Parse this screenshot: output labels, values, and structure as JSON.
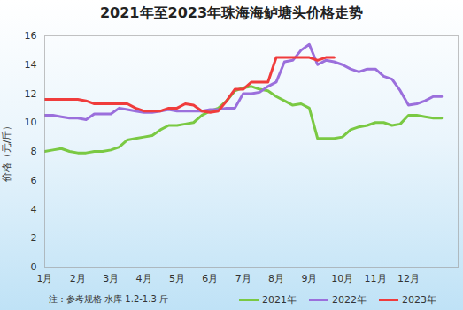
{
  "chart_data": {
    "type": "line",
    "title": "2021年至2023年珠海海鲈塘头价格走势",
    "y_label": "价格（元/斤）",
    "note": "注：参考规格 水库 1.2-1.3 斤",
    "x": [
      1,
      1.25,
      1.5,
      1.75,
      2,
      2.25,
      2.5,
      2.75,
      3,
      3.25,
      3.5,
      3.75,
      4,
      4.25,
      4.5,
      4.75,
      5,
      5.25,
      5.5,
      5.75,
      6,
      6.25,
      6.5,
      6.75,
      7,
      7.25,
      7.5,
      7.75,
      8,
      8.25,
      8.5,
      8.75,
      9,
      9.25,
      9.5,
      9.75,
      10,
      10.25,
      10.5,
      10.75,
      11,
      11.25,
      11.5,
      11.75,
      12,
      12.25,
      12.5,
      12.75,
      13
    ],
    "series": [
      {
        "name": "2021年",
        "color": "#7ac943",
        "values": [
          8.0,
          8.1,
          8.2,
          8.0,
          7.9,
          7.9,
          8.0,
          8.0,
          8.1,
          8.3,
          8.8,
          8.9,
          9.0,
          9.1,
          9.5,
          9.8,
          9.8,
          9.9,
          10.0,
          10.5,
          10.8,
          11.0,
          11.5,
          12.2,
          12.4,
          12.5,
          12.3,
          12.2,
          11.8,
          11.5,
          11.2,
          11.3,
          11.0,
          8.9,
          8.9,
          8.9,
          9.0,
          9.5,
          9.7,
          9.8,
          10.0,
          10.0,
          9.8,
          9.9,
          10.5,
          10.5,
          10.4,
          10.3,
          10.3
        ]
      },
      {
        "name": "2022年",
        "color": "#9b6fdc",
        "values": [
          10.5,
          10.5,
          10.4,
          10.3,
          10.3,
          10.2,
          10.6,
          10.6,
          10.6,
          11.0,
          10.9,
          10.8,
          10.7,
          10.7,
          10.8,
          10.9,
          10.8,
          10.8,
          10.8,
          10.8,
          10.9,
          10.9,
          11.0,
          11.0,
          12.0,
          12.0,
          12.1,
          12.5,
          12.8,
          14.2,
          14.3,
          15.0,
          15.4,
          14.0,
          14.3,
          14.2,
          14.0,
          13.7,
          13.5,
          13.7,
          13.7,
          13.2,
          13.0,
          12.2,
          11.2,
          11.3,
          11.5,
          11.8,
          11.8
        ]
      },
      {
        "name": "2023年",
        "color": "#f03c3c",
        "values": [
          11.6,
          11.6,
          11.6,
          11.6,
          11.6,
          11.5,
          11.3,
          11.3,
          11.3,
          11.3,
          11.3,
          11.0,
          10.8,
          10.8,
          10.8,
          11.0,
          11.0,
          11.3,
          11.2,
          10.8,
          10.7,
          10.8,
          11.5,
          12.3,
          12.3,
          12.8,
          12.8,
          12.8,
          14.5,
          14.5,
          14.5,
          14.5,
          14.5,
          14.3,
          14.5,
          14.5,
          null,
          null,
          null,
          null,
          null,
          null,
          null,
          null,
          null,
          null,
          null,
          null,
          null
        ]
      }
    ],
    "xlim": [
      1,
      13.5
    ],
    "xticks": [
      {
        "value": 1,
        "label": "1月"
      },
      {
        "value": 2,
        "label": "2月"
      },
      {
        "value": 3,
        "label": "3月"
      },
      {
        "value": 4,
        "label": "4月"
      },
      {
        "value": 5,
        "label": "5月"
      },
      {
        "value": 6,
        "label": "6月"
      },
      {
        "value": 7,
        "label": "7月"
      },
      {
        "value": 8,
        "label": "8月"
      },
      {
        "value": 9,
        "label": "9月"
      },
      {
        "value": 10,
        "label": "10月"
      },
      {
        "value": 11,
        "label": "11月"
      },
      {
        "value": 12,
        "label": "12月"
      }
    ],
    "ylim": [
      0,
      16
    ],
    "yticks": [
      0,
      2,
      4,
      6,
      8,
      10,
      12,
      14,
      16
    ],
    "grid": false,
    "legend": "bottom"
  }
}
